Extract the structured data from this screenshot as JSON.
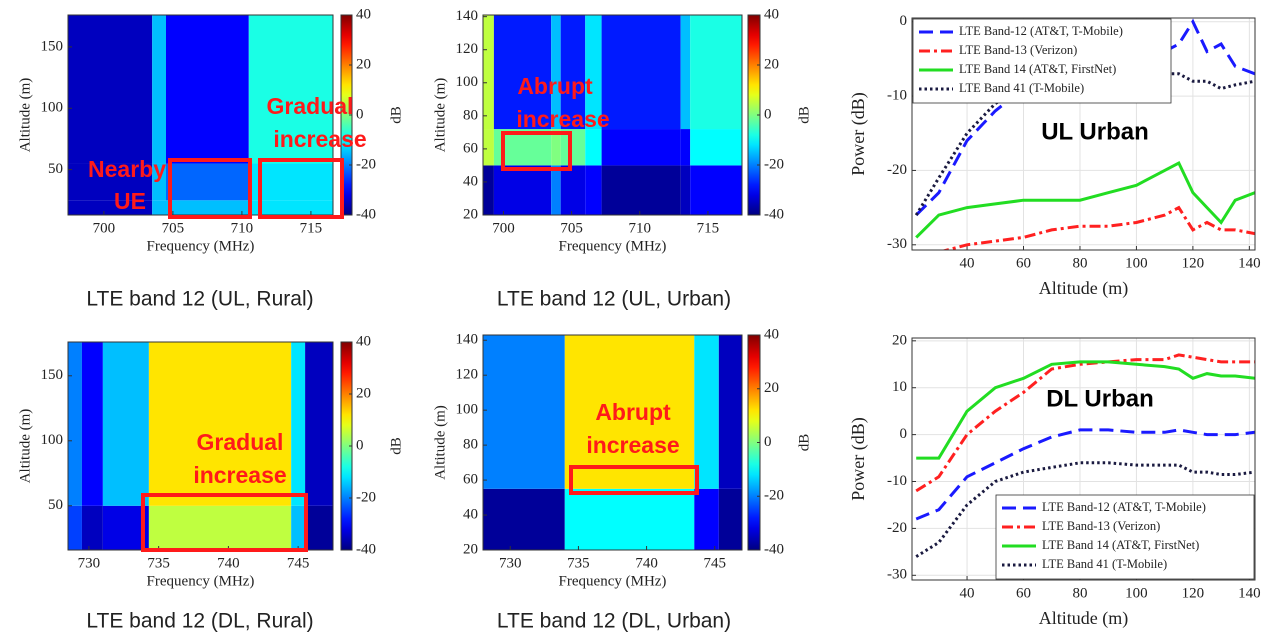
{
  "chart_data": [
    {
      "type": "heatmap",
      "caption": "LTE band 12 (UL, Rural)",
      "xlabel": "Frequency (MHz)",
      "ylabel": "Altitude (m)",
      "colorbar_label": "dB",
      "colormap": "jet",
      "clim": [
        -40,
        40
      ],
      "cticks": [
        -40,
        -20,
        0,
        20,
        40
      ],
      "xlim": [
        697.4,
        716.6
      ],
      "ylim": [
        13,
        176
      ],
      "xticks": [
        700,
        705,
        710,
        715
      ],
      "yticks": [
        50,
        100,
        150
      ],
      "x_edges": [
        697.4,
        703.5,
        704.5,
        710.5,
        716.6
      ],
      "y_edges": [
        13,
        25,
        55,
        176
      ],
      "z": [
        [
          -35,
          -15,
          -15,
          -12
        ],
        [
          -35,
          -15,
          -22,
          -12
        ],
        [
          -35,
          -15,
          -30,
          -8
        ]
      ],
      "annotations": [
        "Nearby",
        "UE",
        "Gradual",
        "increase"
      ]
    },
    {
      "type": "heatmap",
      "caption": "LTE band 12 (UL, Urban)",
      "xlabel": "Frequency (MHz)",
      "ylabel": "Altitude (m)",
      "colorbar_label": "dB",
      "colormap": "jet",
      "clim": [
        -40,
        40
      ],
      "cticks": [
        -40,
        -20,
        0,
        20,
        40
      ],
      "xlim": [
        698.5,
        717.5
      ],
      "ylim": [
        20,
        141
      ],
      "xticks": [
        700,
        705,
        710,
        715
      ],
      "yticks": [
        20,
        40,
        60,
        80,
        100,
        120,
        140
      ],
      "x_edges": [
        698.5,
        699.3,
        703.5,
        704.2,
        706,
        707.2,
        713,
        713.7,
        717.5
      ],
      "y_edges": [
        20,
        50,
        72,
        141
      ],
      "z": [
        [
          -38,
          -32,
          -20,
          -32,
          -30,
          -38,
          -35,
          -30
        ],
        [
          5,
          -2,
          0,
          -2,
          -10,
          -30,
          -30,
          -10
        ],
        [
          5,
          -28,
          -15,
          -28,
          -12,
          -28,
          -15,
          -8
        ]
      ],
      "annotations": [
        "Abrupt",
        "increase"
      ]
    },
    {
      "type": "heatmap",
      "caption": "LTE band 12 (DL, Rural)",
      "xlabel": "Frequency (MHz)",
      "ylabel": "Altitude (m)",
      "colorbar_label": "dB",
      "colormap": "jet",
      "clim": [
        -40,
        40
      ],
      "cticks": [
        -40,
        -20,
        0,
        20,
        40
      ],
      "xlim": [
        728.5,
        747.5
      ],
      "ylim": [
        16,
        176
      ],
      "xticks": [
        730,
        735,
        740,
        745
      ],
      "yticks": [
        50,
        100,
        150
      ],
      "x_edges": [
        728.5,
        729.5,
        731,
        734.3,
        744.5,
        745.5,
        747.5
      ],
      "y_edges": [
        16,
        50,
        176
      ],
      "z": [
        [
          -25,
          -35,
          -32,
          5,
          -15,
          -38
        ],
        [
          -20,
          -30,
          -15,
          12,
          -12,
          -35
        ]
      ],
      "annotations": [
        "Gradual",
        "increase"
      ]
    },
    {
      "type": "heatmap",
      "caption": "LTE band 12 (DL, Urban)",
      "xlabel": "Frequency (MHz)",
      "ylabel": "Altitude (m)",
      "colorbar_label": "dB",
      "colormap": "jet",
      "clim": [
        -40,
        40
      ],
      "cticks": [
        -40,
        -20,
        0,
        20,
        40
      ],
      "xlim": [
        728,
        747
      ],
      "ylim": [
        20,
        143
      ],
      "xticks": [
        730,
        735,
        740,
        745
      ],
      "yticks": [
        20,
        40,
        60,
        80,
        100,
        120,
        140
      ],
      "x_edges": [
        728,
        734,
        743.5,
        745.3,
        747
      ],
      "y_edges": [
        20,
        55,
        143
      ],
      "z": [
        [
          -38,
          -10,
          -30,
          -38
        ],
        [
          -20,
          12,
          -12,
          -35
        ]
      ],
      "annotations": [
        "Abrupt",
        "increase"
      ]
    },
    {
      "type": "line",
      "title": "UL Urban",
      "xlabel": "Altitude (m)",
      "ylabel": "Power (dB)",
      "grid": true,
      "legend": "upper left",
      "xlim": [
        20.5,
        142
      ],
      "ylim": [
        -30.7,
        0.5
      ],
      "xticks": [
        40,
        60,
        80,
        100,
        120,
        140
      ],
      "yticks": [
        -30,
        -20,
        -10,
        0
      ],
      "x": [
        22,
        30,
        40,
        50,
        60,
        70,
        80,
        90,
        100,
        110,
        115,
        120,
        125,
        130,
        135,
        142
      ],
      "series": [
        {
          "name": "LTE Band-12 (AT&T, T-Mobile)",
          "color": "#1a1aff",
          "style": "dashed",
          "values": [
            -26,
            -23,
            -16,
            -12,
            -9,
            -7,
            -6,
            -6,
            -5,
            -4,
            -3,
            0,
            -4,
            -3,
            -6,
            -7
          ]
        },
        {
          "name": "LTE Band-13 (Verizon)",
          "color": "#ff2020",
          "style": "dashdot",
          "values": [
            -31,
            -31,
            -30,
            -29.5,
            -29,
            -28,
            -27.5,
            -27.5,
            -27,
            -26,
            -25,
            -28,
            -27,
            -28,
            -28,
            -28.5
          ]
        },
        {
          "name": "LTE Band 14 (AT&T, FirstNet)",
          "color": "#22dd22",
          "style": "solid",
          "values": [
            -29,
            -26,
            -25,
            -24.5,
            -24,
            -24,
            -24,
            -23,
            -22,
            -20,
            -19,
            -23,
            -25,
            -27,
            -24,
            -23
          ]
        },
        {
          "name": "LTE Band 41 (T-Mobile)",
          "color": "#1a1a40",
          "style": "dotted",
          "values": [
            -26,
            -21,
            -15,
            -11,
            -9,
            -8,
            -7.5,
            -7,
            -7,
            -7,
            -7,
            -8,
            -8,
            -9,
            -8.5,
            -8
          ]
        }
      ]
    },
    {
      "type": "line",
      "title": "DL Urban",
      "xlabel": "Altitude (m)",
      "ylabel": "Power (dB)",
      "grid": true,
      "legend": "lower right",
      "xlim": [
        20.5,
        142
      ],
      "ylim": [
        -31,
        20.6
      ],
      "xticks": [
        40,
        60,
        80,
        100,
        120,
        140
      ],
      "yticks": [
        -30,
        -20,
        -10,
        0,
        10,
        20
      ],
      "x": [
        22,
        30,
        40,
        50,
        60,
        70,
        80,
        90,
        100,
        110,
        115,
        120,
        125,
        130,
        135,
        142
      ],
      "series": [
        {
          "name": "LTE Band-12 (AT&T, T-Mobile)",
          "color": "#1a1aff",
          "style": "dashed",
          "values": [
            -18,
            -16,
            -9,
            -6,
            -3,
            -0.5,
            1,
            1,
            0.5,
            0.5,
            1,
            0.5,
            0,
            0,
            0,
            0.5
          ]
        },
        {
          "name": "LTE Band-13 (Verizon)",
          "color": "#ff2020",
          "style": "dashdot",
          "values": [
            -12,
            -9,
            0,
            5,
            9,
            14,
            15,
            15.5,
            16,
            16,
            17,
            16.5,
            16,
            15.5,
            15.5,
            15.5
          ]
        },
        {
          "name": "LTE Band 14 (AT&T, FirstNet)",
          "color": "#22dd22",
          "style": "solid",
          "values": [
            -5,
            -5,
            5,
            10,
            12,
            15,
            15.5,
            15.5,
            15,
            14.5,
            14,
            12,
            13,
            12.5,
            12.5,
            12
          ]
        },
        {
          "name": "LTE Band 41 (T-Mobile)",
          "color": "#1a1a40",
          "style": "dotted",
          "values": [
            -26,
            -23,
            -15,
            -10,
            -8,
            -7,
            -6,
            -6,
            -6.5,
            -6.5,
            -6.5,
            -8,
            -8,
            -8.5,
            -8.5,
            -8
          ]
        }
      ]
    }
  ]
}
